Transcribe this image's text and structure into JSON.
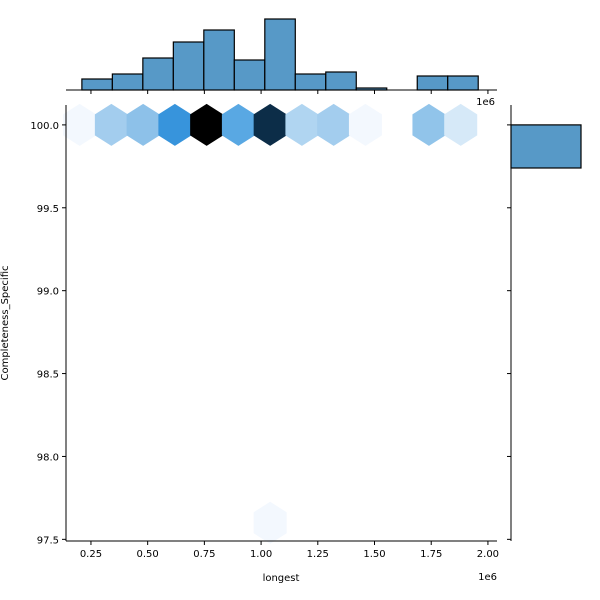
{
  "chart_data": {
    "type": "hexbin-jointplot",
    "title": "",
    "xlabel": "longest",
    "ylabel": "Completeness_Specific",
    "x_offset_label": "1e6",
    "top_offset_label": "1e6",
    "xlim": [
      0.14,
      2.04
    ],
    "ylim": [
      97.49,
      100.12
    ],
    "x_ticks": [
      "0.25",
      "0.50",
      "0.75",
      "1.00",
      "1.25",
      "1.50",
      "1.75",
      "2.00"
    ],
    "y_ticks": [
      "97.5",
      "98.0",
      "98.5",
      "99.0",
      "99.5",
      "100.0"
    ],
    "bar_color": "#5799c7",
    "hexbins": [
      {
        "x": 0.2,
        "y": 100.0,
        "color": "#f3f8fe"
      },
      {
        "x": 0.34,
        "y": 100.0,
        "color": "#a3cdee"
      },
      {
        "x": 0.48,
        "y": 100.0,
        "color": "#8dc1e9"
      },
      {
        "x": 0.62,
        "y": 100.0,
        "color": "#3794dc"
      },
      {
        "x": 0.76,
        "y": 100.0,
        "color": "#000000"
      },
      {
        "x": 0.9,
        "y": 100.0,
        "color": "#59a8e3"
      },
      {
        "x": 1.04,
        "y": 100.0,
        "color": "#0c2d48"
      },
      {
        "x": 1.18,
        "y": 100.0,
        "color": "#b0d5f1"
      },
      {
        "x": 1.32,
        "y": 100.0,
        "color": "#a3cdee"
      },
      {
        "x": 1.46,
        "y": 100.0,
        "color": "#f3f8fe"
      },
      {
        "x": 1.74,
        "y": 100.0,
        "color": "#91c4ea"
      },
      {
        "x": 1.88,
        "y": 100.0,
        "color": "#d6e9f8"
      },
      {
        "x": 1.04,
        "y": 97.6,
        "color": "#f3f8fe"
      }
    ],
    "top_histogram": {
      "bin_start": 0.21,
      "bin_width": 0.1344,
      "relative_heights": [
        11,
        16,
        32,
        48,
        60,
        30,
        71,
        16,
        18,
        2,
        0,
        14,
        14
      ]
    },
    "right_histogram": {
      "bins": [
        {
          "y_from": 99.74,
          "y_to": 100.0,
          "relative_width": 70
        }
      ]
    }
  }
}
